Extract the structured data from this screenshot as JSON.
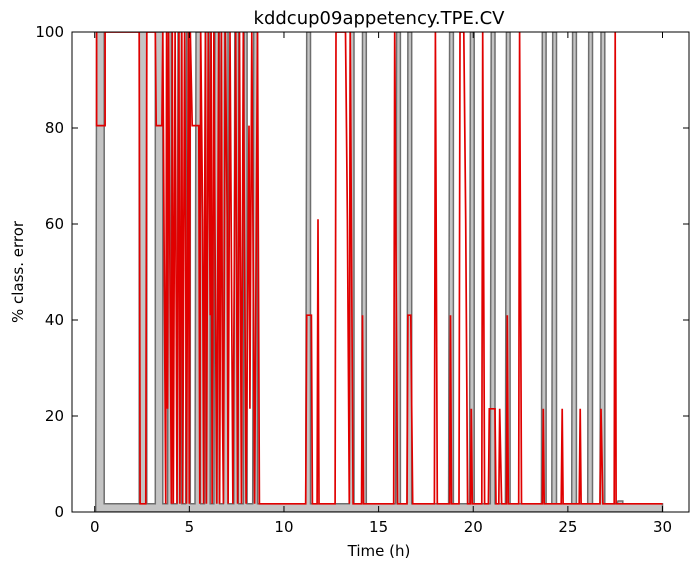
{
  "chart_data": {
    "type": "area",
    "title": "kddcup09appetency.TPE.CV",
    "xlabel": "Time (h)",
    "ylabel": "% class. error",
    "xlim": [
      -1.2,
      31.4
    ],
    "ylim": [
      0,
      100
    ],
    "xticks": [
      "0",
      "5",
      "10",
      "15",
      "20",
      "25",
      "30"
    ],
    "yticks": [
      "0",
      "20",
      "40",
      "60",
      "80",
      "100"
    ],
    "grid": false,
    "colors": {
      "fill": "#c4c4c4",
      "fill_edge": "#6e6e6e",
      "line": "#e00000"
    },
    "series": [
      {
        "style": "gray-filled-step",
        "points": [
          [
            0.05,
            1.7
          ],
          [
            0.1,
            100
          ],
          [
            0.5,
            100
          ],
          [
            0.5,
            1.7
          ],
          [
            2.35,
            1.7
          ],
          [
            2.35,
            100
          ],
          [
            2.75,
            100
          ],
          [
            2.75,
            1.7
          ],
          [
            3.2,
            1.7
          ],
          [
            3.2,
            100
          ],
          [
            3.6,
            100
          ],
          [
            3.6,
            1.7
          ],
          [
            3.85,
            1.7
          ],
          [
            3.9,
            100
          ],
          [
            4.05,
            100
          ],
          [
            4.05,
            1.7
          ],
          [
            4.35,
            1.7
          ],
          [
            4.4,
            100
          ],
          [
            4.6,
            100
          ],
          [
            4.6,
            1.7
          ],
          [
            4.8,
            1.7
          ],
          [
            4.85,
            100
          ],
          [
            5.05,
            100
          ],
          [
            5.05,
            1.7
          ],
          [
            5.3,
            1.7
          ],
          [
            5.35,
            100
          ],
          [
            5.6,
            100
          ],
          [
            5.6,
            1.7
          ],
          [
            5.8,
            1.7
          ],
          [
            5.85,
            100
          ],
          [
            6.1,
            100
          ],
          [
            6.1,
            1.7
          ],
          [
            6.3,
            1.7
          ],
          [
            6.35,
            100
          ],
          [
            6.6,
            100
          ],
          [
            6.6,
            1.7
          ],
          [
            6.8,
            1.7
          ],
          [
            6.85,
            100
          ],
          [
            7.05,
            100
          ],
          [
            7.05,
            1.7
          ],
          [
            7.35,
            1.7
          ],
          [
            7.4,
            100
          ],
          [
            7.6,
            100
          ],
          [
            7.6,
            1.7
          ],
          [
            7.85,
            1.7
          ],
          [
            7.9,
            100
          ],
          [
            8.05,
            100
          ],
          [
            8.05,
            1.7
          ],
          [
            8.35,
            1.7
          ],
          [
            8.4,
            100
          ],
          [
            8.6,
            100
          ],
          [
            8.6,
            1.7
          ],
          [
            11.15,
            1.7
          ],
          [
            11.2,
            100
          ],
          [
            11.4,
            100
          ],
          [
            11.4,
            1.7
          ],
          [
            13.45,
            1.7
          ],
          [
            13.5,
            100
          ],
          [
            13.7,
            100
          ],
          [
            13.7,
            1.7
          ],
          [
            14.1,
            1.7
          ],
          [
            14.15,
            100
          ],
          [
            14.35,
            100
          ],
          [
            14.35,
            1.7
          ],
          [
            15.9,
            1.7
          ],
          [
            15.95,
            100
          ],
          [
            16.15,
            100
          ],
          [
            16.15,
            1.7
          ],
          [
            16.5,
            1.7
          ],
          [
            16.55,
            100
          ],
          [
            16.75,
            100
          ],
          [
            16.75,
            1.7
          ],
          [
            18.7,
            1.7
          ],
          [
            18.75,
            100
          ],
          [
            18.95,
            100
          ],
          [
            18.95,
            1.7
          ],
          [
            19.8,
            1.7
          ],
          [
            19.85,
            100
          ],
          [
            20.05,
            100
          ],
          [
            20.05,
            1.7
          ],
          [
            20.9,
            1.7
          ],
          [
            20.95,
            100
          ],
          [
            21.15,
            100
          ],
          [
            21.15,
            1.7
          ],
          [
            21.7,
            1.7
          ],
          [
            21.75,
            100
          ],
          [
            21.95,
            100
          ],
          [
            21.95,
            1.7
          ],
          [
            23.6,
            1.7
          ],
          [
            23.65,
            100
          ],
          [
            23.85,
            100
          ],
          [
            23.85,
            1.7
          ],
          [
            24.15,
            1.7
          ],
          [
            24.2,
            100
          ],
          [
            24.4,
            100
          ],
          [
            24.4,
            1.7
          ],
          [
            25.2,
            1.7
          ],
          [
            25.25,
            100
          ],
          [
            25.45,
            100
          ],
          [
            25.45,
            1.7
          ],
          [
            26.05,
            1.7
          ],
          [
            26.1,
            100
          ],
          [
            26.3,
            100
          ],
          [
            26.3,
            1.7
          ],
          [
            26.7,
            1.7
          ],
          [
            26.75,
            100
          ],
          [
            26.95,
            100
          ],
          [
            26.95,
            1.7
          ],
          [
            27.6,
            1.7
          ],
          [
            27.65,
            2.3
          ],
          [
            27.9,
            2.3
          ],
          [
            27.9,
            1.7
          ],
          [
            30,
            1.7
          ]
        ]
      },
      {
        "style": "red-line",
        "points": [
          [
            0.1,
            100
          ],
          [
            0.1,
            80.5
          ],
          [
            0.55,
            80.5
          ],
          [
            0.55,
            100
          ],
          [
            2.35,
            100
          ],
          [
            2.4,
            1.7
          ],
          [
            2.7,
            1.7
          ],
          [
            2.75,
            100
          ],
          [
            3.2,
            100
          ],
          [
            3.25,
            80.5
          ],
          [
            3.55,
            80.5
          ],
          [
            3.6,
            100
          ],
          [
            3.75,
            1.7
          ],
          [
            3.8,
            100
          ],
          [
            3.85,
            21.5
          ],
          [
            3.9,
            100
          ],
          [
            4.05,
            1.7
          ],
          [
            4.1,
            100
          ],
          [
            4.15,
            1.7
          ],
          [
            4.25,
            100
          ],
          [
            4.35,
            1.7
          ],
          [
            4.4,
            61
          ],
          [
            4.45,
            100
          ],
          [
            4.5,
            1.7
          ],
          [
            4.6,
            100
          ],
          [
            4.65,
            1.7
          ],
          [
            4.75,
            100
          ],
          [
            4.8,
            61
          ],
          [
            4.85,
            1.7
          ],
          [
            4.95,
            100
          ],
          [
            5.0,
            1.7
          ],
          [
            5.05,
            100
          ],
          [
            5.15,
            80.5
          ],
          [
            5.5,
            80.5
          ],
          [
            5.55,
            1.7
          ],
          [
            5.6,
            100
          ],
          [
            5.7,
            61
          ],
          [
            5.75,
            1.7
          ],
          [
            5.85,
            100
          ],
          [
            5.9,
            1.7
          ],
          [
            6.0,
            100
          ],
          [
            6.1,
            41
          ],
          [
            6.15,
            100
          ],
          [
            6.2,
            1.7
          ],
          [
            6.3,
            100
          ],
          [
            6.35,
            61
          ],
          [
            6.45,
            1.7
          ],
          [
            6.55,
            100
          ],
          [
            6.6,
            1.7
          ],
          [
            6.7,
            100
          ],
          [
            6.75,
            21.5
          ],
          [
            6.8,
            1.7
          ],
          [
            6.9,
            100
          ],
          [
            7.0,
            61
          ],
          [
            7.05,
            1.7
          ],
          [
            7.15,
            100
          ],
          [
            7.3,
            1.7
          ],
          [
            7.45,
            100
          ],
          [
            7.55,
            1.7
          ],
          [
            7.65,
            100
          ],
          [
            7.75,
            1.7
          ],
          [
            7.85,
            100
          ],
          [
            8.0,
            1.7
          ],
          [
            8.15,
            80.5
          ],
          [
            8.2,
            21.5
          ],
          [
            8.3,
            100
          ],
          [
            8.45,
            1.7
          ],
          [
            8.6,
            100
          ],
          [
            8.7,
            1.7
          ],
          [
            9.5,
            1.7
          ],
          [
            10.0,
            1.7
          ],
          [
            11.15,
            1.7
          ],
          [
            11.2,
            41
          ],
          [
            11.45,
            41
          ],
          [
            11.5,
            1.7
          ],
          [
            11.75,
            1.7
          ],
          [
            11.8,
            61
          ],
          [
            11.85,
            1.7
          ],
          [
            12.7,
            1.7
          ],
          [
            12.75,
            100
          ],
          [
            13.25,
            100
          ],
          [
            13.35,
            61
          ],
          [
            13.45,
            1.7
          ],
          [
            13.5,
            100
          ],
          [
            13.65,
            1.7
          ],
          [
            14.1,
            1.7
          ],
          [
            14.15,
            41
          ],
          [
            14.2,
            1.7
          ],
          [
            15.8,
            1.7
          ],
          [
            15.85,
            100
          ],
          [
            16.0,
            1.7
          ],
          [
            16.5,
            1.7
          ],
          [
            16.55,
            41
          ],
          [
            16.7,
            41
          ],
          [
            16.75,
            21.5
          ],
          [
            16.8,
            1.7
          ],
          [
            17.95,
            1.7
          ],
          [
            18.0,
            100
          ],
          [
            18.1,
            1.7
          ],
          [
            18.75,
            1.7
          ],
          [
            18.8,
            41
          ],
          [
            18.85,
            1.7
          ],
          [
            19.25,
            1.7
          ],
          [
            19.3,
            100
          ],
          [
            19.5,
            100
          ],
          [
            19.6,
            61
          ],
          [
            19.7,
            1.7
          ],
          [
            19.85,
            1.7
          ],
          [
            19.9,
            21.5
          ],
          [
            19.95,
            1.7
          ],
          [
            20.45,
            1.7
          ],
          [
            20.5,
            100
          ],
          [
            20.6,
            1.7
          ],
          [
            20.8,
            1.7
          ],
          [
            20.85,
            21.5
          ],
          [
            21.15,
            21.5
          ],
          [
            21.2,
            1.7
          ],
          [
            21.35,
            1.7
          ],
          [
            21.4,
            21.5
          ],
          [
            21.5,
            1.7
          ],
          [
            21.75,
            1.7
          ],
          [
            21.8,
            41
          ],
          [
            21.85,
            1.7
          ],
          [
            22.4,
            1.7
          ],
          [
            22.45,
            100
          ],
          [
            22.55,
            1.7
          ],
          [
            23.65,
            1.7
          ],
          [
            23.7,
            21.5
          ],
          [
            23.75,
            1.7
          ],
          [
            24.65,
            1.7
          ],
          [
            24.7,
            21.5
          ],
          [
            24.75,
            1.7
          ],
          [
            25.6,
            1.7
          ],
          [
            25.65,
            21.5
          ],
          [
            25.7,
            1.7
          ],
          [
            26.7,
            1.7
          ],
          [
            26.75,
            21.5
          ],
          [
            26.85,
            1.7
          ],
          [
            27.45,
            1.7
          ],
          [
            27.5,
            100
          ],
          [
            27.55,
            1.7
          ],
          [
            30,
            1.7
          ]
        ]
      }
    ]
  }
}
